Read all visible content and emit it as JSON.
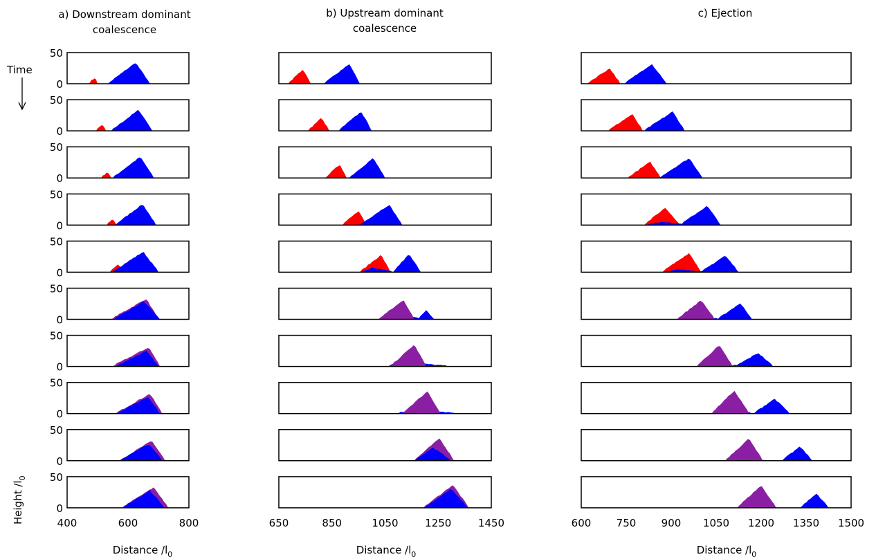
{
  "figure": {
    "time_label": "Time",
    "ylabel": "Height /l",
    "ylabel_sub": "0",
    "xlabel": "Distance /l",
    "xlabel_sub": "0",
    "colors": {
      "upstream": "#ff0000",
      "downstream": "#0000ff",
      "mixed": "#8a1fa3",
      "frame": "#000000"
    }
  },
  "chart_data": [
    {
      "type": "area",
      "title": "a) Downstream dominant coalescence",
      "title_lines": [
        "a) Downstream dominant",
        "coalescence"
      ],
      "xlim": [
        400,
        800
      ],
      "ylim": [
        0,
        50
      ],
      "xticks": [
        400,
        600,
        800
      ],
      "yticks": [
        0,
        50
      ],
      "snapshots": [
        {
          "mounds": [
            {
              "color": "upstream",
              "x0": 470,
              "xp": 492,
              "x1": 500,
              "h": 9
            },
            {
              "color": "downstream",
              "x0": 535,
              "xp": 625,
              "x1": 672,
              "h": 33
            }
          ]
        },
        {
          "mounds": [
            {
              "color": "upstream",
              "x0": 495,
              "xp": 515,
              "x1": 528,
              "h": 9
            },
            {
              "color": "downstream",
              "x0": 545,
              "xp": 635,
              "x1": 680,
              "h": 33
            }
          ]
        },
        {
          "mounds": [
            {
              "color": "upstream",
              "x0": 512,
              "xp": 532,
              "x1": 545,
              "h": 9
            },
            {
              "color": "downstream",
              "x0": 550,
              "xp": 640,
              "x1": 685,
              "h": 33
            }
          ]
        },
        {
          "mounds": [
            {
              "color": "upstream",
              "x0": 530,
              "xp": 550,
              "x1": 562,
              "h": 9
            },
            {
              "color": "downstream",
              "x0": 558,
              "xp": 648,
              "x1": 692,
              "h": 33
            }
          ]
        },
        {
          "mounds": [
            {
              "color": "upstream",
              "x0": 540,
              "xp": 570,
              "x1": 580,
              "h": 12
            },
            {
              "color": "downstream",
              "x0": 548,
              "xp": 650,
              "x1": 700,
              "h": 32
            }
          ]
        },
        {
          "mounds": [
            {
              "color": "mixed",
              "x0": 545,
              "xp": 660,
              "x1": 700,
              "h": 32
            },
            {
              "color": "downstream",
              "x0": 555,
              "xp": 652,
              "x1": 705,
              "h": 28
            }
          ]
        },
        {
          "mounds": [
            {
              "color": "mixed",
              "x0": 550,
              "xp": 668,
              "x1": 705,
              "h": 30
            },
            {
              "color": "downstream",
              "x0": 560,
              "xp": 660,
              "x1": 700,
              "h": 24
            }
          ]
        },
        {
          "mounds": [
            {
              "color": "mixed",
              "x0": 560,
              "xp": 672,
              "x1": 712,
              "h": 31
            },
            {
              "color": "downstream",
              "x0": 565,
              "xp": 665,
              "x1": 705,
              "h": 26
            }
          ]
        },
        {
          "mounds": [
            {
              "color": "mixed",
              "x0": 572,
              "xp": 678,
              "x1": 722,
              "h": 31
            },
            {
              "color": "downstream",
              "x0": 575,
              "xp": 668,
              "x1": 712,
              "h": 26
            }
          ]
        },
        {
          "mounds": [
            {
              "color": "mixed",
              "x0": 580,
              "xp": 685,
              "x1": 732,
              "h": 32
            },
            {
              "color": "downstream",
              "x0": 582,
              "xp": 672,
              "x1": 720,
              "h": 27
            }
          ]
        }
      ]
    },
    {
      "type": "area",
      "title": "b) Upstream dominant coalescence",
      "title_lines": [
        "b) Upstream dominant",
        "coalescence"
      ],
      "xlim": [
        650,
        1450
      ],
      "ylim": [
        0,
        50
      ],
      "xticks": [
        650,
        850,
        1050,
        1250,
        1450
      ],
      "yticks": [
        0,
        50
      ],
      "snapshots": [
        {
          "mounds": [
            {
              "color": "upstream",
              "x0": 685,
              "xp": 740,
              "x1": 770,
              "h": 22
            },
            {
              "color": "downstream",
              "x0": 820,
              "xp": 915,
              "x1": 955,
              "h": 31
            }
          ]
        },
        {
          "mounds": [
            {
              "color": "upstream",
              "x0": 760,
              "xp": 810,
              "x1": 840,
              "h": 20
            },
            {
              "color": "downstream",
              "x0": 875,
              "xp": 960,
              "x1": 1000,
              "h": 30
            }
          ]
        },
        {
          "mounds": [
            {
              "color": "upstream",
              "x0": 825,
              "xp": 880,
              "x1": 905,
              "h": 21
            },
            {
              "color": "downstream",
              "x0": 915,
              "xp": 1005,
              "x1": 1050,
              "h": 31
            }
          ]
        },
        {
          "mounds": [
            {
              "color": "upstream",
              "x0": 890,
              "xp": 950,
              "x1": 980,
              "h": 22
            },
            {
              "color": "downstream",
              "x0": 955,
              "xp": 1065,
              "x1": 1115,
              "h": 32
            }
          ]
        },
        {
          "mounds": [
            {
              "color": "upstream",
              "x0": 955,
              "xp": 1035,
              "x1": 1070,
              "h": 27
            },
            {
              "color": "downstream",
              "x0": 960,
              "xp": 1000,
              "x1": 1080,
              "h": 6
            },
            {
              "color": "downstream",
              "x0": 1080,
              "xp": 1140,
              "x1": 1185,
              "h": 28
            }
          ]
        },
        {
          "mounds": [
            {
              "color": "downstream",
              "x0": 1025,
              "xp": 1060,
              "x1": 1200,
              "h": 10
            },
            {
              "color": "mixed",
              "x0": 1025,
              "xp": 1120,
              "x1": 1160,
              "h": 30
            },
            {
              "color": "downstream",
              "x0": 1175,
              "xp": 1205,
              "x1": 1235,
              "h": 14
            }
          ]
        },
        {
          "mounds": [
            {
              "color": "downstream",
              "x0": 1060,
              "xp": 1100,
              "x1": 1285,
              "h": 7
            },
            {
              "color": "mixed",
              "x0": 1070,
              "xp": 1160,
              "x1": 1205,
              "h": 34
            }
          ]
        },
        {
          "mounds": [
            {
              "color": "downstream",
              "x0": 1100,
              "xp": 1140,
              "x1": 1315,
              "h": 5
            },
            {
              "color": "mixed",
              "x0": 1115,
              "xp": 1210,
              "x1": 1258,
              "h": 35
            }
          ]
        },
        {
          "mounds": [
            {
              "color": "mixed",
              "x0": 1160,
              "xp": 1255,
              "x1": 1310,
              "h": 35
            },
            {
              "color": "downstream",
              "x0": 1160,
              "xp": 1230,
              "x1": 1300,
              "h": 20
            }
          ]
        },
        {
          "mounds": [
            {
              "color": "mixed",
              "x0": 1195,
              "xp": 1305,
              "x1": 1365,
              "h": 36
            },
            {
              "color": "downstream",
              "x0": 1200,
              "xp": 1300,
              "x1": 1360,
              "h": 30
            }
          ]
        }
      ]
    },
    {
      "type": "area",
      "title": "c) Ejection",
      "title_lines": [
        "c) Ejection"
      ],
      "xlim": [
        600,
        1500
      ],
      "ylim": [
        0,
        50
      ],
      "xticks": [
        600,
        750,
        900,
        1050,
        1200,
        1350,
        1500
      ],
      "yticks": [
        0,
        50
      ],
      "snapshots": [
        {
          "mounds": [
            {
              "color": "upstream",
              "x0": 620,
              "xp": 695,
              "x1": 730,
              "h": 24
            },
            {
              "color": "downstream",
              "x0": 745,
              "xp": 835,
              "x1": 885,
              "h": 31
            }
          ]
        },
        {
          "mounds": [
            {
              "color": "upstream",
              "x0": 690,
              "xp": 770,
              "x1": 805,
              "h": 26
            },
            {
              "color": "downstream",
              "x0": 810,
              "xp": 905,
              "x1": 945,
              "h": 30
            }
          ]
        },
        {
          "mounds": [
            {
              "color": "upstream",
              "x0": 755,
              "xp": 830,
              "x1": 865,
              "h": 25
            },
            {
              "color": "downstream",
              "x0": 860,
              "xp": 960,
              "x1": 1005,
              "h": 31
            }
          ]
        },
        {
          "mounds": [
            {
              "color": "upstream",
              "x0": 810,
              "xp": 880,
              "x1": 930,
              "h": 27
            },
            {
              "color": "downstream",
              "x0": 820,
              "xp": 860,
              "x1": 990,
              "h": 4
            },
            {
              "color": "downstream",
              "x0": 930,
              "xp": 1020,
              "x1": 1065,
              "h": 30
            }
          ]
        },
        {
          "mounds": [
            {
              "color": "upstream",
              "x0": 870,
              "xp": 960,
              "x1": 1000,
              "h": 30
            },
            {
              "color": "downstream",
              "x0": 875,
              "xp": 920,
              "x1": 1060,
              "h": 3
            },
            {
              "color": "downstream",
              "x0": 1000,
              "xp": 1080,
              "x1": 1125,
              "h": 26
            }
          ]
        },
        {
          "mounds": [
            {
              "color": "downstream",
              "x0": 915,
              "xp": 960,
              "x1": 1070,
              "h": 5
            },
            {
              "color": "mixed",
              "x0": 920,
              "xp": 1000,
              "x1": 1045,
              "h": 30
            },
            {
              "color": "downstream",
              "x0": 1055,
              "xp": 1130,
              "x1": 1170,
              "h": 25
            }
          ]
        },
        {
          "mounds": [
            {
              "color": "downstream",
              "x0": 985,
              "xp": 1030,
              "x1": 1140,
              "h": 4
            },
            {
              "color": "mixed",
              "x0": 985,
              "xp": 1060,
              "x1": 1105,
              "h": 33
            },
            {
              "color": "downstream",
              "x0": 1115,
              "xp": 1190,
              "x1": 1240,
              "h": 21
            }
          ]
        },
        {
          "mounds": [
            {
              "color": "downstream",
              "x0": 1035,
              "xp": 1080,
              "x1": 1180,
              "h": 4
            },
            {
              "color": "mixed",
              "x0": 1035,
              "xp": 1110,
              "x1": 1160,
              "h": 36
            },
            {
              "color": "downstream",
              "x0": 1175,
              "xp": 1245,
              "x1": 1295,
              "h": 23
            }
          ]
        },
        {
          "mounds": [
            {
              "color": "downstream",
              "x0": 1080,
              "xp": 1120,
              "x1": 1220,
              "h": 3
            },
            {
              "color": "mixed",
              "x0": 1080,
              "xp": 1160,
              "x1": 1205,
              "h": 35
            },
            {
              "color": "downstream",
              "x0": 1270,
              "xp": 1330,
              "x1": 1370,
              "h": 22
            }
          ]
        },
        {
          "mounds": [
            {
              "color": "downstream",
              "x0": 1120,
              "xp": 1190,
              "x1": 1250,
              "h": 20
            },
            {
              "color": "mixed",
              "x0": 1120,
              "xp": 1200,
              "x1": 1250,
              "h": 35
            },
            {
              "color": "downstream",
              "x0": 1330,
              "xp": 1385,
              "x1": 1425,
              "h": 22
            }
          ]
        }
      ]
    }
  ]
}
